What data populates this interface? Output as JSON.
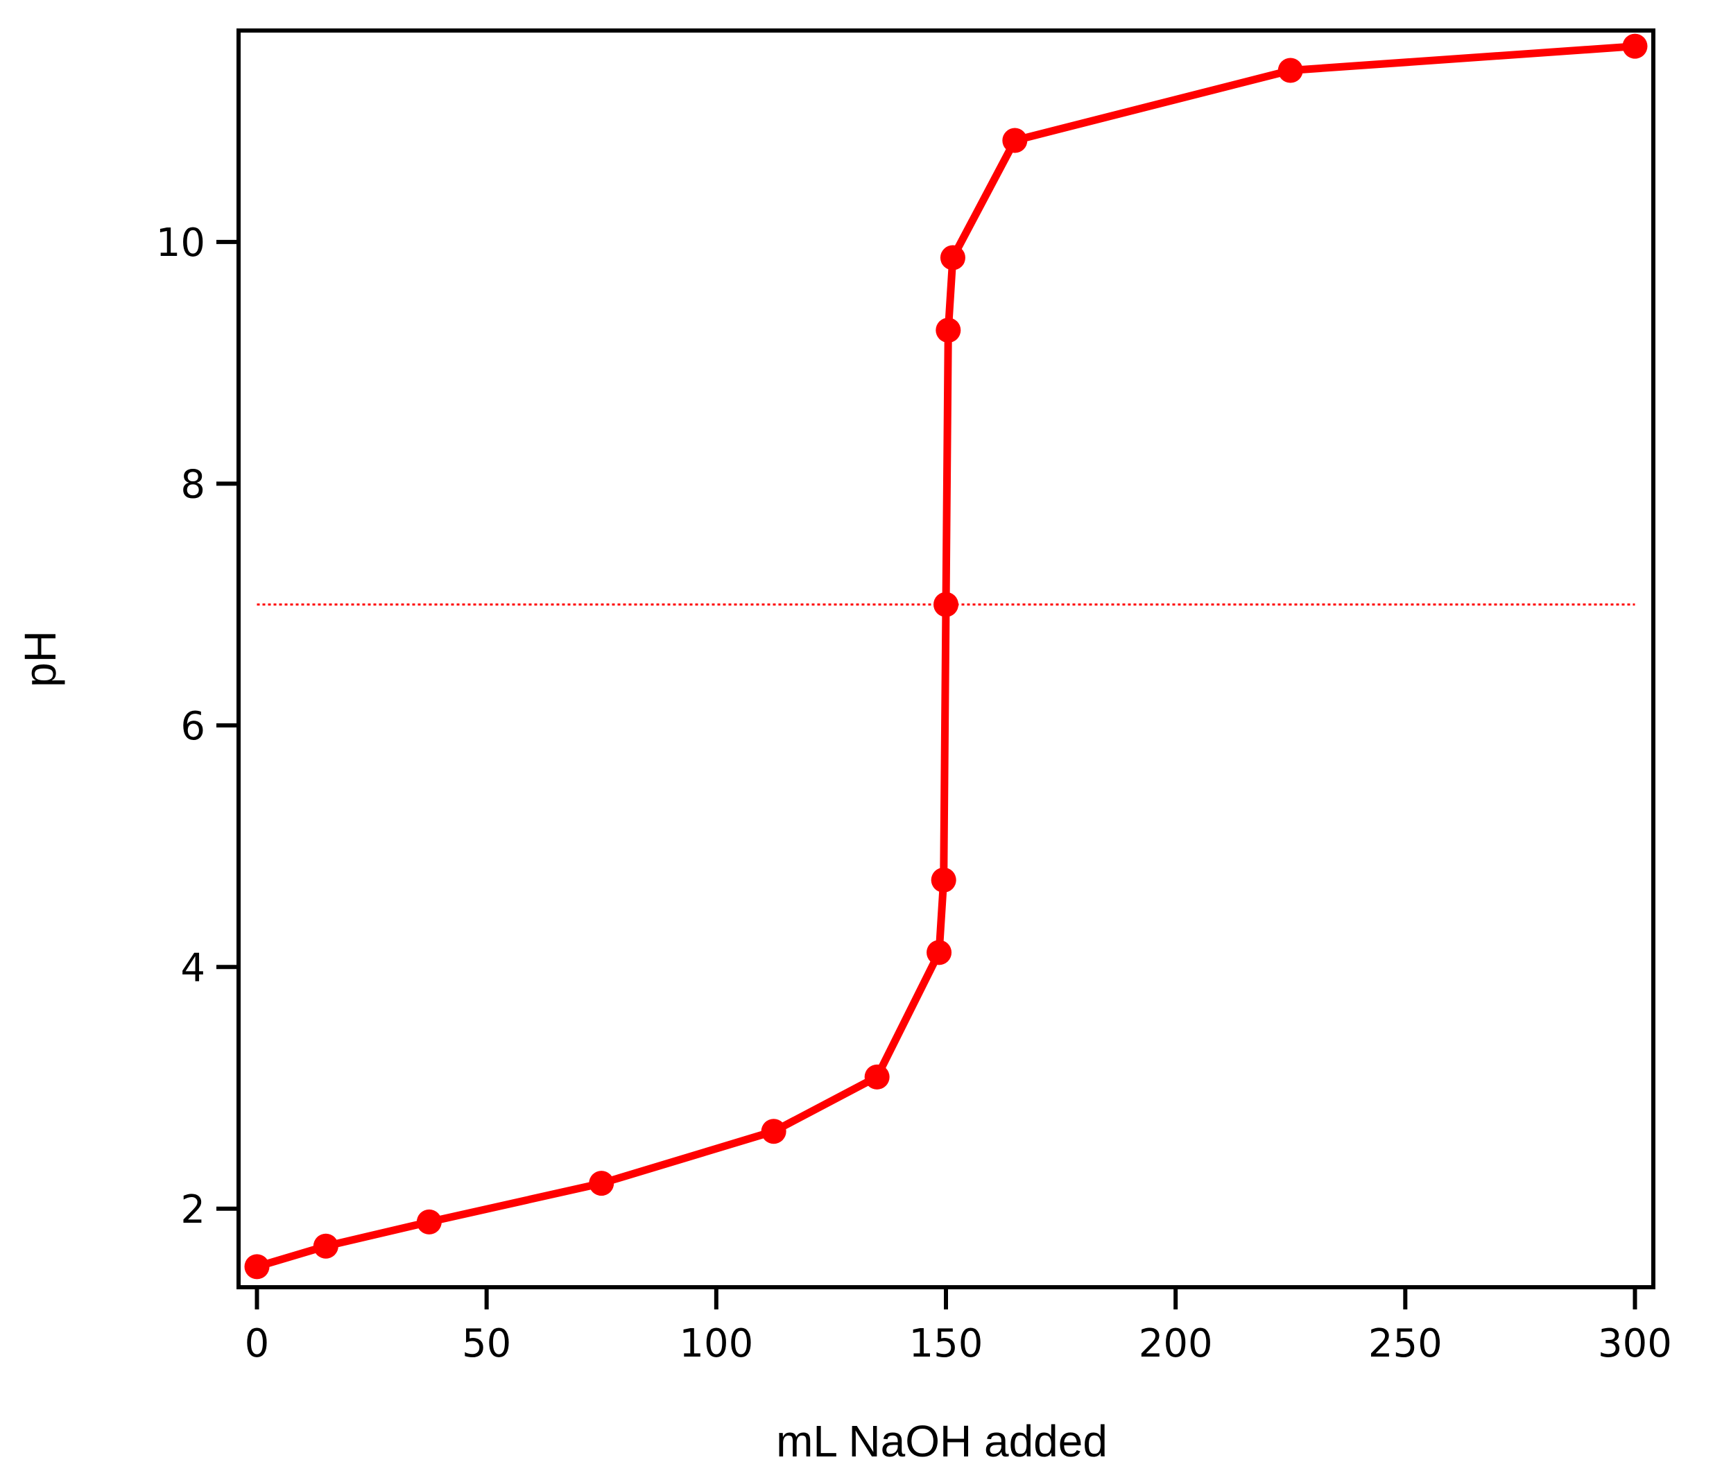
{
  "chart_data": {
    "type": "line",
    "title": "",
    "xlabel": "mL NaOH added",
    "ylabel": "pH",
    "xlim": [
      -4,
      304
    ],
    "ylim": [
      1.35,
      11.75
    ],
    "x_ticks": [
      0,
      50,
      100,
      150,
      200,
      250,
      300
    ],
    "y_ticks": [
      2,
      4,
      6,
      8,
      10
    ],
    "grid": false,
    "legend": "none",
    "series": [
      {
        "color": "#ff0000",
        "marker": "circle",
        "points": [
          {
            "x": 0,
            "y": 1.52
          },
          {
            "x": 15,
            "y": 1.69
          },
          {
            "x": 37.5,
            "y": 1.89
          },
          {
            "x": 75,
            "y": 2.21
          },
          {
            "x": 112.5,
            "y": 2.64
          },
          {
            "x": 135,
            "y": 3.09
          },
          {
            "x": 148.5,
            "y": 4.12
          },
          {
            "x": 149.5,
            "y": 4.72
          },
          {
            "x": 150,
            "y": 7.0
          },
          {
            "x": 150.5,
            "y": 9.27
          },
          {
            "x": 151.5,
            "y": 9.87
          },
          {
            "x": 165,
            "y": 10.84
          },
          {
            "x": 225,
            "y": 11.42
          },
          {
            "x": 300,
            "y": 11.62
          }
        ]
      }
    ],
    "reference_line": {
      "y": 7.0,
      "x_range": [
        0,
        300
      ],
      "style": "dotted",
      "color": "#ff0000"
    }
  }
}
